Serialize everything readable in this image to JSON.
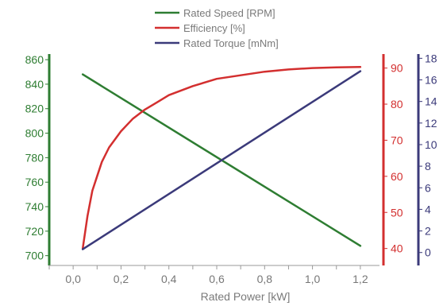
{
  "chart_data": {
    "type": "line",
    "title": "",
    "xlabel": "Rated Power [kW]",
    "x_ticks": [
      "0,0",
      "0,2",
      "0,4",
      "0,6",
      "0,8",
      "1,0",
      "1,2"
    ],
    "xlim": [
      -0.1,
      1.28
    ],
    "grid": false,
    "legend_position": "top-center",
    "series": [
      {
        "name": "Rated Speed [RPM]",
        "axis": "left",
        "color": "#2e7d32",
        "x": [
          0.04,
          1.2
        ],
        "y": [
          848,
          708
        ]
      },
      {
        "name": "Efficiency [%]",
        "axis": "right-inner",
        "color": "#d32f2f",
        "x": [
          0.04,
          0.06,
          0.08,
          0.1,
          0.12,
          0.15,
          0.2,
          0.25,
          0.3,
          0.35,
          0.4,
          0.5,
          0.6,
          0.7,
          0.8,
          0.9,
          1.0,
          1.1,
          1.2
        ],
        "y": [
          40,
          49,
          56,
          60,
          64,
          68,
          72.5,
          76,
          78.5,
          80.5,
          82.5,
          85,
          87,
          88,
          89,
          89.6,
          90,
          90.2,
          90.3
        ]
      },
      {
        "name": "Rated Torque [mNm]",
        "axis": "right-outer",
        "color": "#3b3a7a",
        "x": [
          0.04,
          1.2
        ],
        "y": [
          0.3,
          16.8
        ]
      }
    ],
    "axes": {
      "left": {
        "ticks": [
          "860",
          "840",
          "820",
          "800",
          "780",
          "760",
          "740",
          "720",
          "700"
        ],
        "ylim": [
          692,
          862
        ]
      },
      "right-inner": {
        "ticks": [
          "90",
          "80",
          "70",
          "60",
          "50",
          "40"
        ],
        "ylim": [
          35.3,
          93
        ]
      },
      "right-outer": {
        "ticks": [
          "18",
          "16",
          "14",
          "12",
          "10",
          "8",
          "6",
          "4",
          "2",
          "0"
        ],
        "ylim": [
          -1.2,
          18.1
        ]
      }
    }
  }
}
